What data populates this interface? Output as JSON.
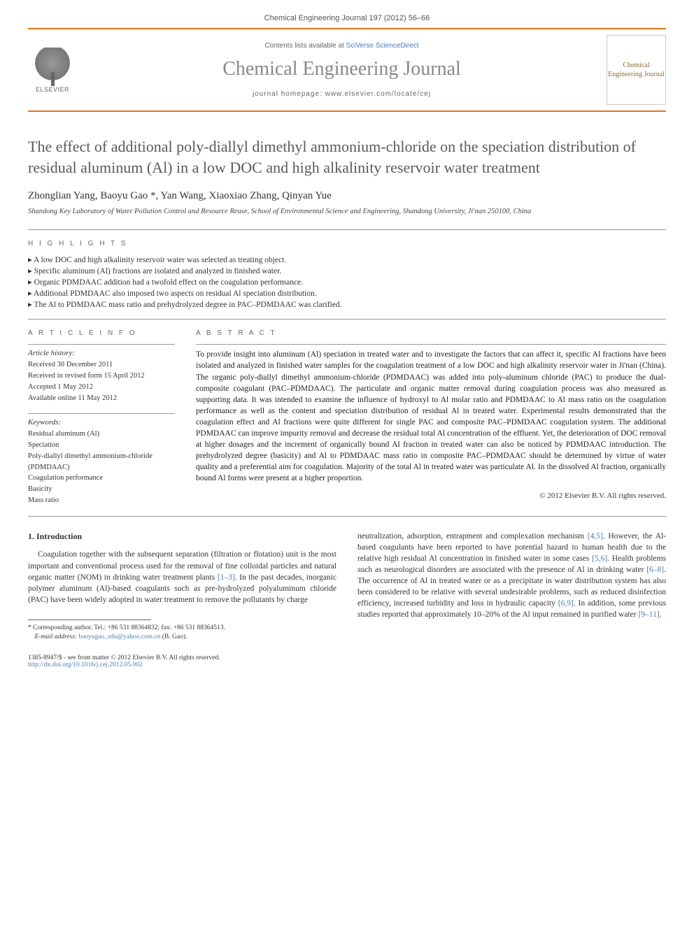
{
  "header": {
    "citation": "Chemical Engineering Journal 197 (2012) 56–66",
    "contents_prefix": "Contents lists available at ",
    "contents_link": "SciVerse ScienceDirect",
    "journal_name": "Chemical Engineering Journal",
    "homepage_prefix": "journal homepage: ",
    "homepage_url": "www.elsevier.com/locate/cej",
    "elsevier_label": "ELSEVIER",
    "cover_text": "Chemical Engineering Journal"
  },
  "title": "The effect of additional poly-diallyl dimethyl ammonium-chloride on the speciation distribution of residual aluminum (Al) in a low DOC and high alkalinity reservoir water treatment",
  "authors": "Zhonglian Yang, Baoyu Gao *, Yan Wang, Xiaoxiao Zhang, Qinyan Yue",
  "affiliation": "Shandong Key Laboratory of Water Pollution Control and Resource Reuse, School of Environmental Science and Engineering, Shandong University, Ji'nan 250100, China",
  "highlights": {
    "label": "H I G H L I G H T S",
    "items": [
      "A low DOC and high alkalinity reservoir water was selected as treating object.",
      "Specific aluminum (Al) fractions are isolated and analyzed in finished water.",
      "Organic PDMDAAC addition had a twofold effect on the coagulation performance.",
      "Additional PDMDAAC also imposed two aspects on residual Al speciation distribution.",
      "The Al to PDMDAAC mass ratio and prehydrolyzed degree in PAC–PDMDAAC was clarified."
    ]
  },
  "article_info": {
    "label": "A R T I C L E   I N F O",
    "history_heading": "Article history:",
    "history": [
      "Received 30 December 2011",
      "Received in revised form 15 April 2012",
      "Accepted 1 May 2012",
      "Available online 11 May 2012"
    ],
    "keywords_heading": "Keywords:",
    "keywords": [
      "Residual aluminum (Al)",
      "Speciation",
      "Poly-diallyl dimethyl ammonium-chloride (PDMDAAC)",
      "Coagulation performance",
      "Basicity",
      "Mass ratio"
    ]
  },
  "abstract": {
    "label": "A B S T R A C T",
    "text": "To provide insight into aluminum (Al) speciation in treated water and to investigate the factors that can affect it, specific Al fractions have been isolated and analyzed in finished water samples for the coagulation treatment of a low DOC and high alkalinity reservoir water in Ji'nan (China). The organic poly-diallyl dimethyl ammonium-chloride (PDMDAAC) was added into poly-aluminum chloride (PAC) to produce the dual-composite coagulant (PAC–PDMDAAC). The particulate and organic matter removal during coagulation process was also measured as supporting data. It was intended to examine the influence of hydroxyl to Al molar ratio and PDMDAAC to Al mass ratio on the coagulation performance as well as the content and speciation distribution of residual Al in treated water. Experimental results demonstrated that the coagulation effect and Al fractions were quite different for single PAC and composite PAC–PDMDAAC coagulation system. The additional PDMDAAC can improve impurity removal and decrease the residual total Al concentration of the effluent. Yet, the deterioration of DOC removal at higher dosages and the increment of organically bound Al fraction in treated water can also be noticed by PDMDAAC introduction. The prehydrolyzed degree (basicity) and Al to PDMDAAC mass ratio in composite PAC–PDMDAAC should be determined by virtue of water quality and a preferential aim for coagulation. Majority of the total Al in treated water was particulate Al. In the dissolved Al fraction, organically bound Al forms were present at a higher proportion.",
    "copyright": "© 2012 Elsevier B.V. All rights reserved."
  },
  "body": {
    "intro_heading": "1. Introduction",
    "col1": "Coagulation together with the subsequent separation (filtration or flotation) unit is the most important and conventional process used for the removal of fine colloidal particles and natural organic matter (NOM) in drinking water treatment plants [1–3]. In the past decades, inorganic polymer aluminum (Al)-based coagulants such as pre-hydrolyzed polyaluminum chloride (PAC) have been widely adopted in water treatment to remove the pollutants by charge",
    "col1_cite": "[1–3]",
    "col2": "neutralization, adsorption, entrapment and complexation mechanism [4,5]. However, the Al-based coagulants have been reported to have potential hazard to human health due to the relative high residual Al concentration in finished water in some cases [5,6]. Health problems such as neurological disorders are associated with the presence of Al in drinking water [6–8]. The occurrence of Al in treated water or as a precipitate in water distribution system has also been considered to be relative with several undesirable problems, such as reduced disinfection efficiency, increased turbidity and loss in hydraulic capacity [6,9]. In addition, some previous studies reported that approximately 10–20% of the Al input remained in purified water [9–11]."
  },
  "footnote": {
    "corresponding": "* Corresponding author. Tel.: +86 531 88364832; fax: +86 531 88364513.",
    "email_label": "E-mail address: ",
    "email": "baoyugao_sdu@yahoo.com.cn",
    "email_suffix": " (B. Gao)."
  },
  "footer": {
    "issn": "1385-8947/$ - see front matter © 2012 Elsevier B.V. All rights reserved.",
    "doi": "http://dx.doi.org/10.1016/j.cej.2012.05.002"
  }
}
